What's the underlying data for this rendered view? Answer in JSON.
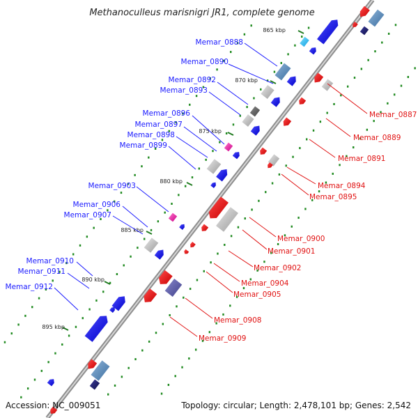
{
  "title": "Methanoculleus marisnigri JR1, complete genome",
  "footer": {
    "accession": "Accession: NC_009051",
    "topology": "Topology: circular; Length: 2,478,101 bp; Genes: 2,542"
  },
  "scale_labels": [
    "865 kbp",
    "870 kbp",
    "875 kbp",
    "880 kbp",
    "885 kbp",
    "890 kbp",
    "895 kbp"
  ],
  "colors": {
    "forward_gene": "#1010ee",
    "reverse_gene": "#ee1010",
    "neutral_gene": "#b8b8b8",
    "rna_gene": "#ee22aa",
    "backbone": "#999999"
  },
  "forward_labels": [
    "Memar_0888",
    "Memar_0890",
    "Memar_0892",
    "Memar_0893",
    "Memar_0896",
    "Memar_0897",
    "Memar_0898",
    "Memar_0899",
    "Memar_0903",
    "Memar_0906",
    "Memar_0907",
    "Memar_0910",
    "Memar_0911",
    "Memar_0912"
  ],
  "reverse_labels": [
    "Memar_0887",
    "Memar_0889",
    "Memar_0891",
    "Memar_0894",
    "Memar_0895",
    "Memar_0900",
    "Memar_0901",
    "Memar_0902",
    "Memar_0904",
    "Memar_0905",
    "Memar_0908",
    "Memar_0909"
  ]
}
